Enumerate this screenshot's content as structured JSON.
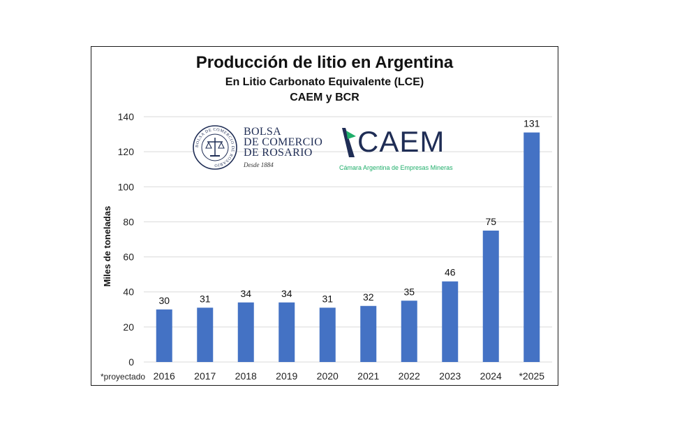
{
  "chart_data": {
    "type": "bar",
    "title": "Producción de litio en Argentina",
    "subtitle": "En Litio Carbonato Equivalente (LCE)",
    "source": "CAEM y BCR",
    "ylabel": "Miles de toneladas",
    "xlabel": "",
    "footnote": "*proyectado",
    "categories": [
      "2016",
      "2017",
      "2018",
      "2019",
      "2020",
      "2021",
      "2022",
      "2023",
      "2024",
      "*2025"
    ],
    "values": [
      30,
      31,
      34,
      34,
      31,
      32,
      35,
      46,
      75,
      131
    ],
    "data_labels": [
      "30",
      "31",
      "34",
      "34",
      "31",
      "32",
      "35",
      "46",
      "75",
      "131"
    ],
    "yticks": [
      "0",
      "20",
      "40",
      "60",
      "80",
      "100",
      "120",
      "140"
    ],
    "ylim": [
      0,
      140
    ],
    "grid": true,
    "bar_color": "#4472c4"
  },
  "logos": {
    "bcr": {
      "line1": "BOLSA",
      "line2": "DE COMERCIO",
      "line3": "DE ROSARIO",
      "since": "Desde 1884",
      "seal_text": "BOLSA DE COMERCIO DE ROSARIO"
    },
    "caem": {
      "name": "CAEM",
      "tagline": "Cámara Argentina de Empresas Mineras",
      "brand_color": "#1f2d55",
      "accent_color": "#1fae6a"
    }
  }
}
